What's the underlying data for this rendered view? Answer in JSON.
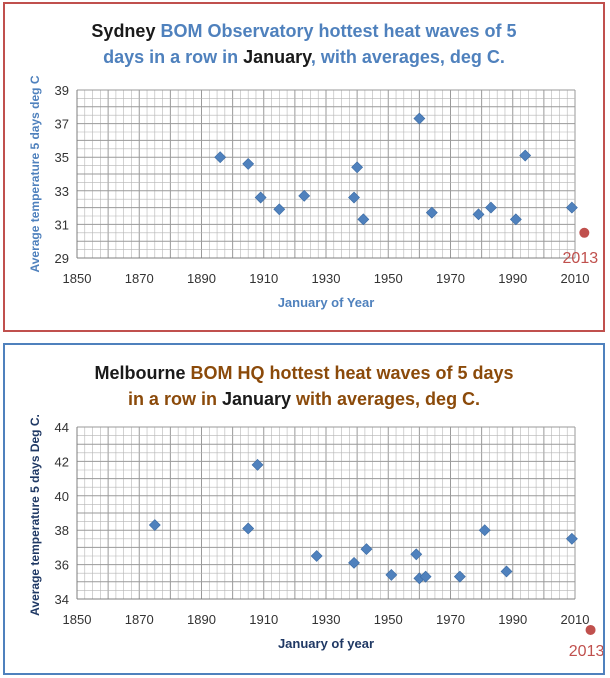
{
  "colors": {
    "sydney_border": "#c0504d",
    "melbourne_border": "#4f81bd",
    "marker": "#4f81bd",
    "highlight": "#c0504d",
    "title_black": "#1a1a1a",
    "title_blue": "#4f81bd",
    "title_brown": "#8b4a0a",
    "grid": "#b5b5b5"
  },
  "chart_data": [
    {
      "type": "scatter",
      "title_parts": [
        {
          "text": "Sydney ",
          "color": "black"
        },
        {
          "text": "BOM Observatory hottest heat waves of 5",
          "color": "blue"
        },
        {
          "text": "days in a row in ",
          "color": "blue",
          "newline": true
        },
        {
          "text": "January",
          "color": "black"
        },
        {
          "text": ", with averages, deg C.",
          "color": "blue"
        }
      ],
      "xlabel": "January  of Year",
      "ylabel": "Average temperature 5 days deg C",
      "xlim": [
        1850,
        2010
      ],
      "ylim": [
        29,
        39
      ],
      "xticks": [
        "1850",
        "1870",
        "1890",
        "1910",
        "1930",
        "1950",
        "1970",
        "1990",
        "2010"
      ],
      "yticks": [
        "29",
        "31",
        "33",
        "35",
        "37",
        "39"
      ],
      "points": [
        {
          "x": 1896,
          "y": 35.0
        },
        {
          "x": 1905,
          "y": 34.6
        },
        {
          "x": 1909,
          "y": 32.6
        },
        {
          "x": 1915,
          "y": 31.9
        },
        {
          "x": 1923,
          "y": 32.7
        },
        {
          "x": 1939,
          "y": 32.6
        },
        {
          "x": 1940,
          "y": 34.4
        },
        {
          "x": 1942,
          "y": 31.3
        },
        {
          "x": 1960,
          "y": 37.3
        },
        {
          "x": 1964,
          "y": 31.7
        },
        {
          "x": 1979,
          "y": 31.6
        },
        {
          "x": 1983,
          "y": 32.0
        },
        {
          "x": 1991,
          "y": 31.3
        },
        {
          "x": 1994,
          "y": 35.1
        },
        {
          "x": 2009,
          "y": 32.0
        }
      ],
      "highlight": {
        "label": "2013",
        "x": 2013,
        "y": 30.5
      }
    },
    {
      "type": "scatter",
      "title_parts": [
        {
          "text": "Melbourne ",
          "color": "black"
        },
        {
          "text": "BOM HQ hottest heat waves of 5 days",
          "color": "brown"
        },
        {
          "text": "in a row in ",
          "color": "brown",
          "newline": true
        },
        {
          "text": "January",
          "color": "black"
        },
        {
          "text": " with averages, deg C.",
          "color": "brown"
        }
      ],
      "xlabel": "January of year",
      "ylabel": "Average temperature 5 days Deg C.",
      "xlim": [
        1850,
        2010
      ],
      "ylim": [
        34,
        44
      ],
      "xticks": [
        "1850",
        "1870",
        "1890",
        "1910",
        "1930",
        "1950",
        "1970",
        "1990",
        "2010"
      ],
      "yticks": [
        "34",
        "36",
        "38",
        "40",
        "42",
        "44"
      ],
      "points": [
        {
          "x": 1875,
          "y": 38.3
        },
        {
          "x": 1905,
          "y": 38.1
        },
        {
          "x": 1908,
          "y": 41.8
        },
        {
          "x": 1927,
          "y": 36.5
        },
        {
          "x": 1939,
          "y": 36.1
        },
        {
          "x": 1943,
          "y": 36.9
        },
        {
          "x": 1951,
          "y": 35.4
        },
        {
          "x": 1959,
          "y": 36.6
        },
        {
          "x": 1960,
          "y": 35.2
        },
        {
          "x": 1962,
          "y": 35.3
        },
        {
          "x": 1973,
          "y": 35.3
        },
        {
          "x": 1981,
          "y": 38.0
        },
        {
          "x": 1988,
          "y": 35.6
        },
        {
          "x": 2009,
          "y": 37.5
        }
      ],
      "highlight": {
        "label": "2013",
        "x": 2015,
        "y": 32.2
      }
    }
  ]
}
